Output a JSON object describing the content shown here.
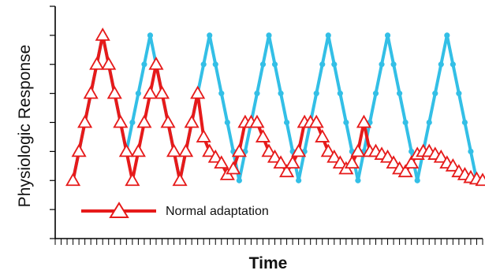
{
  "chart_data": {
    "type": "line",
    "title": "",
    "xlabel": "Time",
    "ylabel": "Physiologic Response",
    "x_ticks_labeled": false,
    "y_ticks_labeled": false,
    "xlim": [
      0,
      72
    ],
    "ylim": [
      -2,
      6
    ],
    "grid": false,
    "legend": {
      "position": "bottom-left"
    },
    "series": [
      {
        "name": "",
        "color": "#33bfe6",
        "marker": "dot",
        "x": [
          3,
          4,
          5,
          6,
          7,
          8,
          9,
          10,
          11,
          12,
          13,
          14,
          15,
          16,
          17,
          18,
          19,
          20,
          21,
          22,
          23,
          24,
          25,
          26,
          27,
          28,
          29,
          30,
          31,
          32,
          33,
          34,
          35,
          36,
          37,
          38,
          39,
          40,
          41,
          42,
          43,
          44,
          45,
          46,
          47,
          48,
          49,
          50,
          51,
          52,
          53,
          54,
          55,
          56,
          57,
          58,
          59,
          60,
          61,
          62,
          63,
          64,
          65,
          66,
          67,
          68,
          69,
          70,
          71,
          72
        ],
        "y": [
          0,
          1,
          2,
          3,
          4,
          5,
          4,
          3,
          2,
          1,
          2,
          3,
          4,
          5,
          4,
          3,
          2,
          1,
          0,
          1,
          2,
          3,
          4,
          5,
          4,
          3,
          2,
          1,
          0,
          1,
          2,
          3,
          4,
          5,
          4,
          3,
          2,
          1,
          0,
          1,
          2,
          3,
          4,
          5,
          4,
          3,
          2,
          1,
          0,
          1,
          2,
          3,
          4,
          5,
          4,
          3,
          2,
          1,
          0,
          1,
          2,
          3,
          4,
          5,
          4,
          3,
          2,
          1,
          0,
          0
        ]
      },
      {
        "name": "Normal adaptation",
        "color": "#e61a1a",
        "marker": "open-triangle",
        "x": [
          3,
          4,
          5,
          6,
          7,
          8,
          9,
          10,
          11,
          12,
          13,
          14,
          15,
          16,
          17,
          18,
          19,
          20,
          21,
          22,
          23,
          24,
          25,
          26,
          27,
          28,
          29,
          30,
          31,
          32,
          33,
          34,
          35,
          36,
          37,
          38,
          39,
          40,
          41,
          42,
          43,
          44,
          45,
          46,
          47,
          48,
          49,
          50,
          51,
          52,
          53,
          54,
          55,
          56,
          57,
          58,
          59,
          60,
          61,
          62,
          63,
          64,
          65,
          66,
          67,
          68,
          69,
          70,
          71,
          72
        ],
        "y": [
          0,
          1,
          2,
          3,
          4,
          5,
          4,
          3,
          2,
          1,
          0,
          1,
          2,
          3,
          4,
          3,
          2,
          1,
          0,
          1,
          2,
          3,
          1.5,
          1,
          0.8,
          0.6,
          0.2,
          0.4,
          1,
          2,
          2,
          2,
          1.5,
          1,
          0.8,
          0.6,
          0.3,
          0.6,
          1,
          2,
          2,
          2,
          1.5,
          1,
          0.8,
          0.6,
          0.4,
          0.6,
          1,
          2,
          1,
          1,
          0.9,
          0.8,
          0.6,
          0.4,
          0.3,
          0.6,
          0.9,
          1,
          1,
          0.9,
          0.8,
          0.6,
          0.5,
          0.3,
          0.2,
          0.1,
          0.05,
          0
        ]
      }
    ]
  }
}
